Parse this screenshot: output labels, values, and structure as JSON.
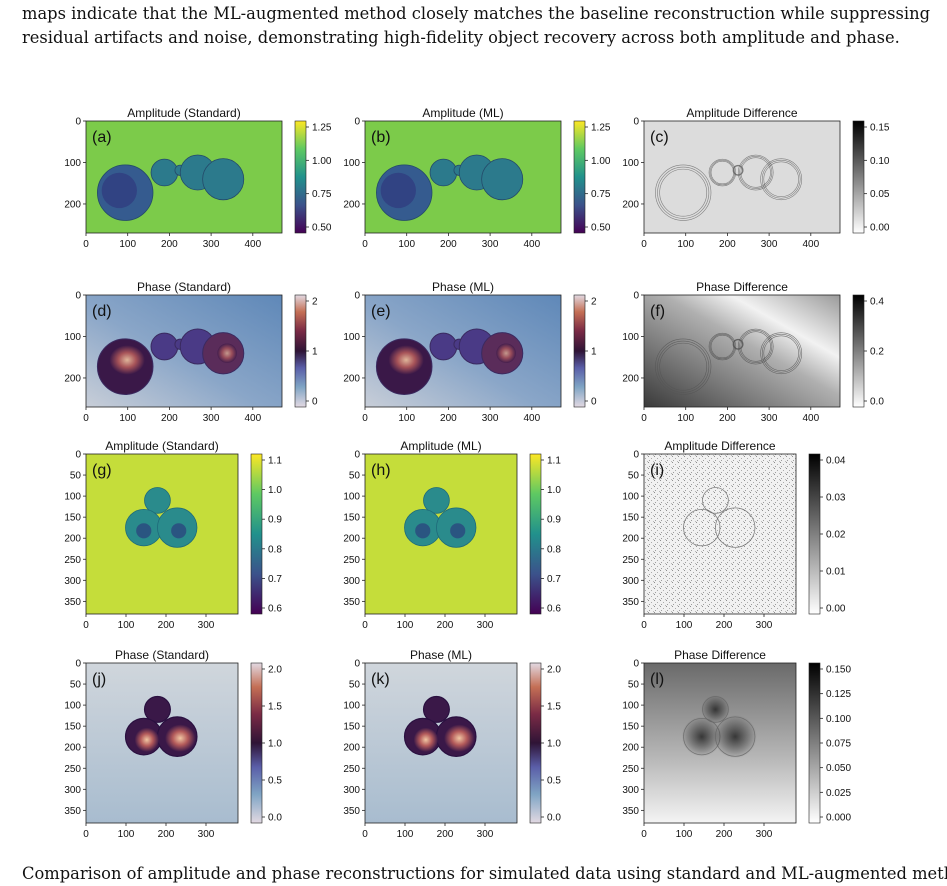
{
  "text": {
    "top_lines": [
      "maps indicate that the ML-augmented method closely matches the baseline reconstruction while",
      "suppressing residual artifacts and noise, demonstrating high-fidelity object recovery across both",
      "amplitude and phase."
    ],
    "bottom_fragment": "Comparison of amplitude and phase reconstructions for simulated data using standard and ML-augmented methods."
  },
  "figure": {
    "panels": [
      {
        "id": "a",
        "label": "(a)",
        "title": "Amplitude (Standard)",
        "cmap": "viridis",
        "xticks": [
          "0",
          "100",
          "200",
          "300",
          "400"
        ],
        "yticks": [
          "0",
          "100",
          "200"
        ],
        "cbar_ticks": [
          "1.25",
          "1.00",
          "0.75",
          "0.50"
        ]
      },
      {
        "id": "b",
        "label": "(b)",
        "title": "Amplitude (ML)",
        "cmap": "viridis",
        "xticks": [
          "0",
          "100",
          "200",
          "300",
          "400"
        ],
        "yticks": [
          "0",
          "100",
          "200"
        ],
        "cbar_ticks": [
          "1.25",
          "1.00",
          "0.75",
          "0.50"
        ]
      },
      {
        "id": "c",
        "label": "(c)",
        "title": "Amplitude Difference",
        "cmap": "gray",
        "xticks": [
          "0",
          "100",
          "200",
          "300",
          "400"
        ],
        "yticks": [
          "0",
          "100",
          "200"
        ],
        "cbar_ticks": [
          "0.15",
          "0.10",
          "0.05",
          "0.00"
        ]
      },
      {
        "id": "d",
        "label": "(d)",
        "title": "Phase (Standard)",
        "cmap": "twilight",
        "xticks": [
          "0",
          "100",
          "200",
          "300",
          "400"
        ],
        "yticks": [
          "0",
          "100",
          "200"
        ],
        "cbar_ticks": [
          "2",
          "1",
          "0"
        ]
      },
      {
        "id": "e",
        "label": "(e)",
        "title": "Phase (ML)",
        "cmap": "twilight",
        "xticks": [
          "0",
          "100",
          "200",
          "300",
          "400"
        ],
        "yticks": [
          "0",
          "100",
          "200"
        ],
        "cbar_ticks": [
          "2",
          "1",
          "0"
        ]
      },
      {
        "id": "f",
        "label": "(f)",
        "title": "Phase Difference",
        "cmap": "gray",
        "xticks": [
          "0",
          "100",
          "200",
          "300",
          "400"
        ],
        "yticks": [
          "0",
          "100",
          "200"
        ],
        "cbar_ticks": [
          "0.4",
          "0.2",
          "0.0"
        ]
      },
      {
        "id": "g",
        "label": "(g)",
        "title": "Amplitude (Standard)",
        "cmap": "viridis",
        "xticks": [
          "0",
          "100",
          "200",
          "300"
        ],
        "yticks": [
          "0",
          "50",
          "100",
          "150",
          "200",
          "250",
          "300",
          "350"
        ],
        "cbar_ticks": [
          "1.1",
          "1.0",
          "0.9",
          "0.8",
          "0.7",
          "0.6"
        ]
      },
      {
        "id": "h",
        "label": "(h)",
        "title": "Amplitude (ML)",
        "cmap": "viridis",
        "xticks": [
          "0",
          "100",
          "200",
          "300"
        ],
        "yticks": [
          "0",
          "50",
          "100",
          "150",
          "200",
          "250",
          "300",
          "350"
        ],
        "cbar_ticks": [
          "1.1",
          "1.0",
          "0.9",
          "0.8",
          "0.7",
          "0.6"
        ]
      },
      {
        "id": "i",
        "label": "(i)",
        "title": "Amplitude Difference",
        "cmap": "gray",
        "xticks": [
          "0",
          "100",
          "200",
          "300"
        ],
        "yticks": [
          "0",
          "50",
          "100",
          "150",
          "200",
          "250",
          "300",
          "350"
        ],
        "cbar_ticks": [
          "0.04",
          "0.03",
          "0.02",
          "0.01",
          "0.00"
        ]
      },
      {
        "id": "j",
        "label": "(j)",
        "title": "Phase (Standard)",
        "cmap": "twilight",
        "xticks": [
          "0",
          "100",
          "200",
          "300"
        ],
        "yticks": [
          "0",
          "50",
          "100",
          "150",
          "200",
          "250",
          "300",
          "350"
        ],
        "cbar_ticks": [
          "2.0",
          "1.5",
          "1.0",
          "0.5",
          "0.0"
        ]
      },
      {
        "id": "k",
        "label": "(k)",
        "title": "Phase (ML)",
        "cmap": "twilight",
        "xticks": [
          "0",
          "100",
          "200",
          "300"
        ],
        "yticks": [
          "0",
          "50",
          "100",
          "150",
          "200",
          "250",
          "300",
          "350"
        ],
        "cbar_ticks": [
          "2.0",
          "1.5",
          "1.0",
          "0.5",
          "0.0"
        ]
      },
      {
        "id": "l",
        "label": "(l)",
        "title": "Phase Difference",
        "cmap": "gray",
        "xticks": [
          "0",
          "100",
          "200",
          "300"
        ],
        "yticks": [
          "0",
          "50",
          "100",
          "150",
          "200",
          "250",
          "300",
          "350"
        ],
        "cbar_ticks": [
          "0.150",
          "0.125",
          "0.100",
          "0.075",
          "0.050",
          "0.025",
          "0.000"
        ]
      }
    ]
  },
  "colors": {
    "viridis_bg": "#7ccb4a",
    "viridis_obj": "#2c7a8c",
    "viridis_dark": "#2d2f7a",
    "yellow_bg": "#c5dd3a",
    "twilight_bg_blue": "#6b93c0",
    "twilight_bg_gray": "#c4ccd6",
    "twilight_dark": "#3a1848",
    "twilight_hot": "#d88a5a"
  }
}
